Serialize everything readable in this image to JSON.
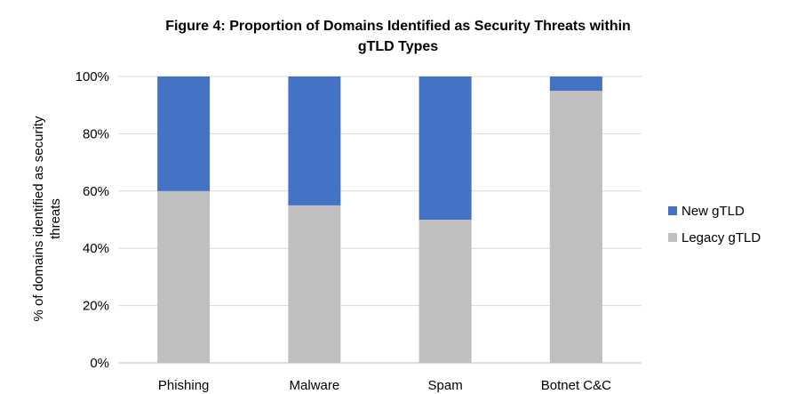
{
  "chart_data": {
    "type": "bar",
    "stacked": true,
    "title": "Figure 4: Proportion of Domains Identified as Security Threats within gTLD Types",
    "title_lines": [
      "Figure 4: Proportion of Domains Identified as Security Threats within",
      "gTLD Types"
    ],
    "ylabel": "% of domains identified as security threats",
    "ylabel_lines": [
      "% of domains identified as security",
      "threats"
    ],
    "xlabel": "",
    "categories": [
      "Phishing",
      "Malware",
      "Spam",
      "Botnet C&C"
    ],
    "yticks": [
      "0%",
      "20%",
      "40%",
      "60%",
      "80%",
      "100%"
    ],
    "ylim": [
      0,
      100
    ],
    "grid": true,
    "legend_position": "right",
    "series": [
      {
        "name": "Legacy gTLD",
        "color": "#bfbfbf",
        "values": [
          60,
          55,
          50,
          95
        ]
      },
      {
        "name": "New gTLD",
        "color": "#4472c4",
        "values": [
          40,
          45,
          50,
          5
        ]
      }
    ],
    "legend_order": [
      "New gTLD",
      "Legacy gTLD"
    ]
  }
}
